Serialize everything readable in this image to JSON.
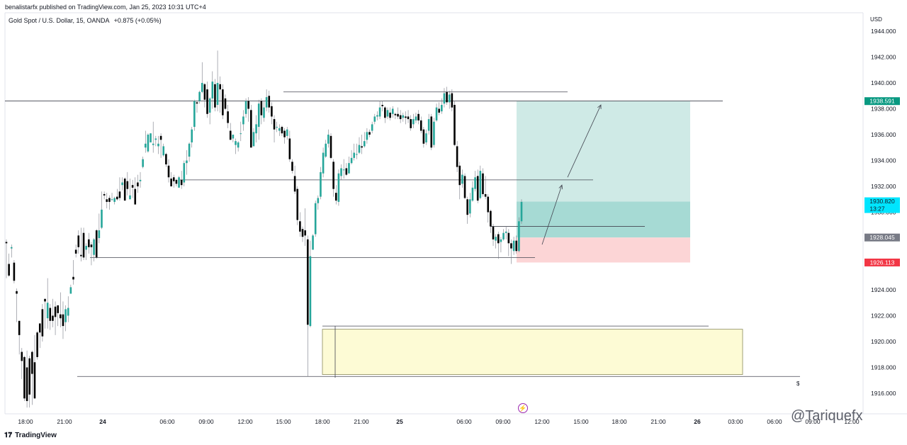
{
  "header": {
    "published_text": "benalistarfx published on TradingView.com, Jan 25, 2023 10:31 UTC+4"
  },
  "symbol": {
    "name": "Gold Spot / U.S. Dollar, 15, OANDA",
    "change": "+0.875 (+0.05%)"
  },
  "footer": {
    "logo_text": "TradingView"
  },
  "watermark": "@Tariquefx",
  "colors": {
    "up": "#26a69a",
    "down": "#000000",
    "target_zone": "#cfeae6",
    "stop_zone": "#fcd5d6",
    "demand_zone": "#fdfbd5",
    "current_price_badge": "#00e5ff",
    "target_badge": "#089981",
    "entry_badge": "#787b86",
    "stop_badge": "#f23645"
  },
  "chart_data": {
    "type": "candlestick",
    "currency": "USD",
    "ylim": [
      1914.8,
      1945.5
    ],
    "y_ticks": [
      "1944.000",
      "1942.000",
      "1940.000",
      "1938.000",
      "1936.000",
      "1934.000",
      "1932.000",
      "1930.000",
      "1928.000",
      "1926.000",
      "1924.000",
      "1922.000",
      "1920.000",
      "1918.000",
      "1916.000"
    ],
    "y_tick_values": [
      1944,
      1942,
      1940,
      1938,
      1936,
      1934,
      1932,
      1930,
      1928,
      1926,
      1924,
      1922,
      1920,
      1918,
      1916
    ],
    "x_ticks": [
      "18:00",
      "21:00",
      "24",
      "06:00",
      "09:00",
      "12:00",
      "15:00",
      "18:00",
      "21:00",
      "25",
      "06:00",
      "09:00",
      "12:00",
      "15:00",
      "18:00",
      "21:00",
      "26",
      "03:00",
      "06:00",
      "09:00",
      "12:00"
    ],
    "x_tick_bold": [
      false,
      false,
      true,
      false,
      false,
      false,
      false,
      false,
      false,
      true,
      false,
      false,
      false,
      false,
      false,
      false,
      true,
      false,
      false,
      false,
      false
    ],
    "price_badges": [
      {
        "label": "1938.591",
        "price": 1938.591,
        "kind": "target"
      },
      {
        "label": "1930.820",
        "sub": "13:27",
        "price": 1930.82,
        "kind": "current"
      },
      {
        "label": "1928.045",
        "price": 1928.045,
        "kind": "entry"
      },
      {
        "label": "1926.113",
        "price": 1926.113,
        "kind": "stop"
      }
    ],
    "horizontal_levels": [
      1938.6,
      1939.3,
      1932.5,
      1926.5,
      1928.9,
      1921.2,
      1917.3
    ],
    "position": {
      "entry": 1928.045,
      "target": 1938.591,
      "stop": 1926.113,
      "current": 1930.82
    },
    "demand_zone": {
      "top": 1920.95,
      "bottom": 1917.45
    },
    "projection_arrows": [
      {
        "from": 1927.5,
        "to": 1932.1
      },
      {
        "from": 1932.7,
        "to": 1938.3
      }
    ],
    "candles": [
      [
        1927.7,
        1927.6,
        1927.9,
        1924.9
      ],
      [
        1926.0,
        1925.1,
        1926.8,
        1925.0
      ],
      [
        1927.2,
        1927.3,
        1927.5,
        1926.5
      ],
      [
        1926.1,
        1924.7,
        1926.3,
        1924.5
      ],
      [
        1923.9,
        1923.7,
        1924.1,
        1921.5
      ],
      [
        1921.6,
        1920.5,
        1921.6,
        1919.0
      ],
      [
        1919.2,
        1918.5,
        1919.5,
        1917.1
      ],
      [
        1918.8,
        1915.6,
        1918.9,
        1915.4
      ],
      [
        1918.0,
        1915.4,
        1919.3,
        1914.9
      ],
      [
        1918.7,
        1915.9,
        1918.9,
        1914.9
      ],
      [
        1919.2,
        1917.5,
        1919.3,
        1915.1
      ],
      [
        1918.4,
        1915.6,
        1920.5,
        1915.6
      ],
      [
        1920.7,
        1918.8,
        1920.8,
        1918.6
      ],
      [
        1921.4,
        1920.7,
        1921.4,
        1919.5
      ],
      [
        1922.5,
        1920.4,
        1922.9,
        1920.0
      ],
      [
        1923.3,
        1923.1,
        1923.3,
        1921.0
      ],
      [
        1921.8,
        1923.0,
        1924.9,
        1921.0
      ],
      [
        1922.6,
        1921.6,
        1922.9,
        1920.9
      ],
      [
        1922.0,
        1921.6,
        1923.3,
        1921.1
      ],
      [
        1922.7,
        1921.9,
        1923.1,
        1920.5
      ],
      [
        1922.8,
        1922.2,
        1922.8,
        1921.2
      ],
      [
        1922.1,
        1921.8,
        1923.8,
        1921.1
      ],
      [
        1922.1,
        1921.2,
        1923.1,
        1920.2
      ],
      [
        1921.5,
        1922.5,
        1922.8,
        1920.8
      ],
      [
        1922.0,
        1922.6,
        1923.5,
        1921.5
      ],
      [
        1923.7,
        1924.2,
        1924.4,
        1923.7
      ],
      [
        1925.0,
        1924.8,
        1926.3,
        1924.4
      ],
      [
        1927.1,
        1926.8,
        1927.5,
        1926.5
      ],
      [
        1928.2,
        1927.3,
        1928.6,
        1926.8
      ],
      [
        1926.7,
        1926.6,
        1928.8,
        1926.2
      ],
      [
        1928.4,
        1926.5,
        1928.8,
        1926.3
      ],
      [
        1927.1,
        1927.4,
        1927.6,
        1926.3
      ],
      [
        1927.9,
        1927.3,
        1928.4,
        1926.8
      ],
      [
        1927.5,
        1927.3,
        1927.7,
        1925.9
      ],
      [
        1926.7,
        1927.9,
        1928.0,
        1926.2
      ],
      [
        1928.6,
        1926.5,
        1928.7,
        1926.4
      ],
      [
        1928.0,
        1928.6,
        1929.9,
        1927.6
      ],
      [
        1928.8,
        1930.2,
        1931.6,
        1928.7
      ],
      [
        1931.4,
        1931.3,
        1931.6,
        1931.0
      ],
      [
        1931.0,
        1930.8,
        1931.5,
        1930.3
      ],
      [
        1931.1,
        1930.8,
        1931.3,
        1930.2
      ],
      [
        1931.0,
        1931.0,
        1931.5,
        1930.9
      ],
      [
        1930.8,
        1931.1,
        1931.2,
        1930.6
      ],
      [
        1931.2,
        1931.0,
        1931.8,
        1930.9
      ],
      [
        1931.6,
        1931.1,
        1932.7,
        1930.9
      ],
      [
        1932.1,
        1932.3,
        1932.7,
        1931.7
      ],
      [
        1932.6,
        1930.9,
        1932.7,
        1930.9
      ],
      [
        1932.4,
        1931.8,
        1933.1,
        1931.3
      ],
      [
        1931.0,
        1931.3,
        1932.6,
        1931.0
      ],
      [
        1932.1,
        1931.9,
        1932.5,
        1931.1
      ],
      [
        1931.8,
        1930.6,
        1932.7,
        1930.6
      ],
      [
        1932.3,
        1932.0,
        1932.9,
        1931.5
      ],
      [
        1932.4,
        1932.5,
        1933.1,
        1931.9
      ],
      [
        1933.5,
        1934.1,
        1934.3,
        1933.4
      ],
      [
        1935.0,
        1935.3,
        1936.3,
        1934.6
      ],
      [
        1934.7,
        1936.0,
        1936.1,
        1934.6
      ],
      [
        1935.4,
        1936.1,
        1935.8,
        1935.4
      ],
      [
        1935.2,
        1935.3,
        1937.0,
        1934.6
      ],
      [
        1935.6,
        1935.7,
        1935.9,
        1935.1
      ],
      [
        1935.1,
        1935.3,
        1935.9,
        1934.5
      ],
      [
        1935.9,
        1935.6,
        1936.1,
        1934.2
      ],
      [
        1934.4,
        1935.1,
        1935.3,
        1934.3
      ],
      [
        1934.5,
        1933.7,
        1934.6,
        1933.5
      ],
      [
        1933.6,
        1932.7,
        1934.1,
        1932.3
      ],
      [
        1932.6,
        1932.0,
        1933.1,
        1932.2
      ],
      [
        1932.7,
        1932.4,
        1932.9,
        1931.9
      ],
      [
        1932.5,
        1932.2,
        1932.6,
        1932.0
      ],
      [
        1931.9,
        1932.7,
        1932.8,
        1931.9
      ],
      [
        1932.5,
        1932.1,
        1933.2,
        1931.8
      ],
      [
        1932.3,
        1933.8,
        1934.0,
        1932.0
      ],
      [
        1933.8,
        1934.0,
        1934.8,
        1932.9
      ],
      [
        1934.3,
        1935.3,
        1935.4,
        1933.9
      ],
      [
        1935.4,
        1936.4,
        1936.6,
        1935.0
      ],
      [
        1936.6,
        1938.6,
        1938.7,
        1936.3
      ],
      [
        1938.5,
        1938.4,
        1938.6,
        1937.7
      ],
      [
        1938.6,
        1939.3,
        1939.4,
        1938.4
      ],
      [
        1939.3,
        1940.0,
        1941.6,
        1939.2
      ],
      [
        1939.9,
        1938.7,
        1940.0,
        1938.1
      ],
      [
        1939.5,
        1937.6,
        1940.1,
        1937.3
      ],
      [
        1937.7,
        1938.8,
        1938.9,
        1936.8
      ],
      [
        1938.8,
        1940.1,
        1940.9,
        1938.0
      ],
      [
        1939.9,
        1938.1,
        1940.3,
        1937.8
      ],
      [
        1938.3,
        1940.0,
        1942.5,
        1937.8
      ],
      [
        1939.9,
        1939.5,
        1940.5,
        1937.7
      ],
      [
        1939.5,
        1937.5,
        1939.9,
        1937.2
      ],
      [
        1938.8,
        1938.0,
        1939.1,
        1937.9
      ],
      [
        1937.8,
        1936.9,
        1938.3,
        1936.5
      ],
      [
        1936.3,
        1935.6,
        1936.9,
        1936.1
      ],
      [
        1935.7,
        1936.0,
        1935.5,
        1935.4
      ],
      [
        1935.2,
        1935.5,
        1935.7,
        1934.5
      ],
      [
        1935.0,
        1935.4,
        1935.5,
        1934.7
      ],
      [
        1936.1,
        1936.1,
        1937.0,
        1935.5
      ],
      [
        1936.8,
        1937.4,
        1937.9,
        1936.3
      ],
      [
        1937.6,
        1938.6,
        1938.8,
        1937.3
      ],
      [
        1938.6,
        1938.0,
        1938.9,
        1937.0
      ],
      [
        1937.9,
        1935.0,
        1938.3,
        1935.0
      ],
      [
        1935.1,
        1936.2,
        1936.5,
        1935.4
      ],
      [
        1936.1,
        1936.8,
        1937.5,
        1935.4
      ],
      [
        1936.6,
        1938.4,
        1938.7,
        1935.6
      ],
      [
        1938.6,
        1937.5,
        1938.8,
        1936.8
      ],
      [
        1937.3,
        1938.1,
        1938.6,
        1937.0
      ],
      [
        1938.1,
        1938.9,
        1939.5,
        1937.8
      ],
      [
        1939.0,
        1938.1,
        1939.4,
        1937.7
      ],
      [
        1938.2,
        1937.4,
        1938.5,
        1936.8
      ],
      [
        1937.2,
        1936.4,
        1937.5,
        1935.4
      ],
      [
        1936.6,
        1936.6,
        1937.0,
        1936.2
      ],
      [
        1936.3,
        1936.5,
        1936.8,
        1935.9
      ],
      [
        1936.6,
        1936.1,
        1936.7,
        1935.9
      ],
      [
        1936.3,
        1935.8,
        1936.5,
        1935.3
      ],
      [
        1935.9,
        1936.4,
        1936.6,
        1935.6
      ],
      [
        1935.7,
        1934.1,
        1936.3,
        1933.9
      ],
      [
        1933.9,
        1933.2,
        1934.1,
        1933.0
      ],
      [
        1932.8,
        1931.6,
        1933.6,
        1931.4
      ],
      [
        1931.8,
        1929.4,
        1932.0,
        1929.0
      ],
      [
        1929.3,
        1928.5,
        1930.0,
        1928.1
      ],
      [
        1928.7,
        1928.1,
        1928.9,
        1927.7
      ],
      [
        1928.6,
        1928.2,
        1930.3,
        1927.4
      ],
      [
        1927.9,
        1921.3,
        1928.2,
        1917.3
      ],
      [
        1921.2,
        1926.6,
        1927.8,
        1921.1
      ],
      [
        1927.1,
        1928.2,
        1928.3,
        1927.1
      ],
      [
        1928.3,
        1930.7,
        1930.9,
        1928.1
      ],
      [
        1930.7,
        1931.1,
        1931.3,
        1930.2
      ],
      [
        1931.2,
        1933.1,
        1933.5,
        1931.0
      ],
      [
        1933.0,
        1934.6,
        1935.0,
        1932.7
      ],
      [
        1934.3,
        1935.3,
        1935.6,
        1934.2
      ],
      [
        1935.3,
        1936.0,
        1936.4,
        1935.0
      ],
      [
        1935.9,
        1934.2,
        1936.1,
        1934.1
      ],
      [
        1933.9,
        1931.8,
        1934.1,
        1931.2
      ],
      [
        1931.5,
        1930.9,
        1932.1,
        1930.6
      ],
      [
        1930.8,
        1933.0,
        1933.3,
        1930.5
      ],
      [
        1932.8,
        1933.4,
        1933.7,
        1932.5
      ],
      [
        1933.3,
        1933.3,
        1934.1,
        1932.6
      ],
      [
        1933.4,
        1932.9,
        1933.8,
        1932.8
      ],
      [
        1933.0,
        1933.8,
        1934.3,
        1933.0
      ],
      [
        1933.8,
        1934.2,
        1934.8,
        1933.7
      ],
      [
        1934.2,
        1934.6,
        1935.3,
        1934.0
      ],
      [
        1934.5,
        1934.5,
        1935.3,
        1934.1
      ],
      [
        1934.6,
        1935.2,
        1935.8,
        1934.5
      ],
      [
        1935.1,
        1935.0,
        1936.0,
        1934.5
      ],
      [
        1935.1,
        1935.5,
        1936.2,
        1935.0
      ],
      [
        1935.6,
        1936.2,
        1936.5,
        1935.3
      ],
      [
        1936.2,
        1936.0,
        1936.4,
        1935.8
      ],
      [
        1936.3,
        1936.8,
        1937.0,
        1936.1
      ],
      [
        1937.0,
        1937.4,
        1937.6,
        1936.8
      ],
      [
        1937.4,
        1937.5,
        1937.8,
        1937.1
      ],
      [
        1937.4,
        1938.1,
        1938.6,
        1937.2
      ],
      [
        1938.3,
        1938.2,
        1938.6,
        1937.8
      ],
      [
        1938.1,
        1937.3,
        1938.2,
        1936.9
      ],
      [
        1937.4,
        1937.9,
        1938.1,
        1937.2
      ],
      [
        1937.7,
        1937.3,
        1938.1,
        1937.1
      ],
      [
        1937.6,
        1938.0,
        1938.2,
        1937.3
      ],
      [
        1937.6,
        1937.5,
        1937.7,
        1937.2
      ],
      [
        1937.6,
        1937.4,
        1938.1,
        1937.2
      ],
      [
        1937.5,
        1937.2,
        1937.9,
        1936.9
      ],
      [
        1937.3,
        1937.5,
        1937.7,
        1937.0
      ],
      [
        1937.4,
        1937.3,
        1937.8,
        1936.8
      ],
      [
        1937.4,
        1937.2,
        1937.9,
        1936.9
      ],
      [
        1937.2,
        1936.5,
        1937.5,
        1936.3
      ],
      [
        1936.8,
        1937.2,
        1937.6,
        1936.5
      ],
      [
        1937.1,
        1937.4,
        1937.7,
        1936.9
      ],
      [
        1937.6,
        1937.1,
        1937.9,
        1936.8
      ],
      [
        1937.1,
        1936.3,
        1937.4,
        1936.1
      ],
      [
        1936.4,
        1935.3,
        1936.6,
        1935.0
      ],
      [
        1935.4,
        1936.1,
        1936.4,
        1935.2
      ],
      [
        1936.3,
        1937.2,
        1937.6,
        1936.0
      ],
      [
        1937.4,
        1935.0,
        1937.6,
        1934.8
      ],
      [
        1935.2,
        1937.0,
        1937.3,
        1935.0
      ],
      [
        1937.1,
        1938.1,
        1938.4,
        1937.0
      ],
      [
        1938.0,
        1937.7,
        1938.5,
        1937.5
      ],
      [
        1937.8,
        1938.3,
        1938.8,
        1937.6
      ],
      [
        1938.4,
        1939.2,
        1939.6,
        1938.1
      ],
      [
        1939.3,
        1938.5,
        1939.7,
        1938.3
      ],
      [
        1938.5,
        1939.1,
        1939.4,
        1938.0
      ],
      [
        1939.2,
        1938.1,
        1939.5,
        1937.8
      ],
      [
        1938.3,
        1935.2,
        1938.6,
        1935.1
      ],
      [
        1935.1,
        1933.5,
        1935.5,
        1933.1
      ],
      [
        1933.6,
        1932.1,
        1933.9,
        1931.0
      ],
      [
        1932.2,
        1932.9,
        1933.3,
        1931.9
      ],
      [
        1932.8,
        1931.1,
        1933.0,
        1931.0
      ],
      [
        1931.0,
        1929.8,
        1931.2,
        1929.1
      ],
      [
        1929.9,
        1931.0,
        1931.5,
        1929.6
      ],
      [
        1930.9,
        1931.9,
        1932.4,
        1930.8
      ],
      [
        1931.8,
        1932.7,
        1933.2,
        1931.6
      ],
      [
        1932.8,
        1930.9,
        1933.3,
        1930.7
      ],
      [
        1931.1,
        1933.2,
        1933.6,
        1931.0
      ],
      [
        1933.0,
        1931.4,
        1933.4,
        1931.2
      ],
      [
        1931.4,
        1931.2,
        1932.8,
        1931.0
      ],
      [
        1931.2,
        1930.0,
        1931.4,
        1929.2
      ],
      [
        1930.1,
        1928.9,
        1930.2,
        1928.4
      ],
      [
        1928.9,
        1927.9,
        1929.1,
        1927.4
      ],
      [
        1927.8,
        1928.1,
        1928.3,
        1927.2
      ],
      [
        1928.3,
        1927.6,
        1928.5,
        1926.4
      ],
      [
        1927.7,
        1927.9,
        1928.1,
        1926.9
      ],
      [
        1927.9,
        1928.4,
        1928.7,
        1927.8
      ],
      [
        1928.4,
        1928.5,
        1928.9,
        1927.9
      ],
      [
        1928.4,
        1927.6,
        1928.7,
        1926.6
      ],
      [
        1927.6,
        1927.2,
        1927.9,
        1926.0
      ],
      [
        1927.0,
        1927.8,
        1928.1,
        1926.7
      ],
      [
        1927.8,
        1927.0,
        1928.2,
        1926.8
      ],
      [
        1927.0,
        1929.3,
        1929.6,
        1926.9
      ],
      [
        1929.3,
        1930.8,
        1931.0,
        1929.1
      ]
    ]
  }
}
